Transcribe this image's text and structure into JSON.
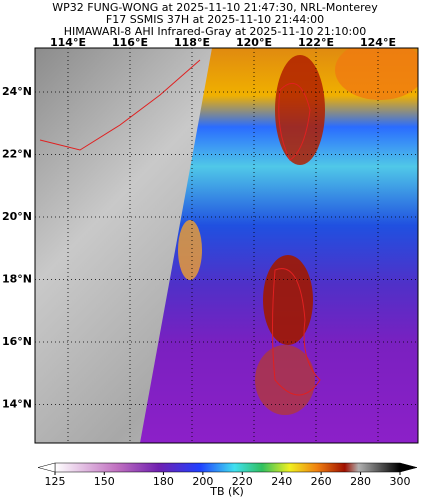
{
  "title_lines": [
    "WP32 FUNG-WONG at 2025-11-10 21:47:30, NRL-Monterey",
    "F17 SSMIS 37H at 2025-11-10 21:44:00",
    "HIMAWARI-8 AHI Infrared-Gray at 2025-11-10 21:10:00"
  ],
  "lon_ticks": [
    {
      "value": 114,
      "label": "114°E"
    },
    {
      "value": 116,
      "label": "116°E"
    },
    {
      "value": 118,
      "label": "118°E"
    },
    {
      "value": 120,
      "label": "120°E"
    },
    {
      "value": 122,
      "label": "122°E"
    },
    {
      "value": 124,
      "label": "124°E"
    }
  ],
  "lat_ticks": [
    {
      "value": 24,
      "label": "24°N"
    },
    {
      "value": 22,
      "label": "22°N"
    },
    {
      "value": 20,
      "label": "20°N"
    },
    {
      "value": 18,
      "label": "18°N"
    },
    {
      "value": 16,
      "label": "16°N"
    },
    {
      "value": 14,
      "label": "14°N"
    }
  ],
  "colorbar": {
    "label": "TB (K)",
    "clim": [
      125,
      300
    ],
    "ticks": [
      125,
      150,
      180,
      200,
      220,
      240,
      260,
      280,
      300
    ]
  }
}
